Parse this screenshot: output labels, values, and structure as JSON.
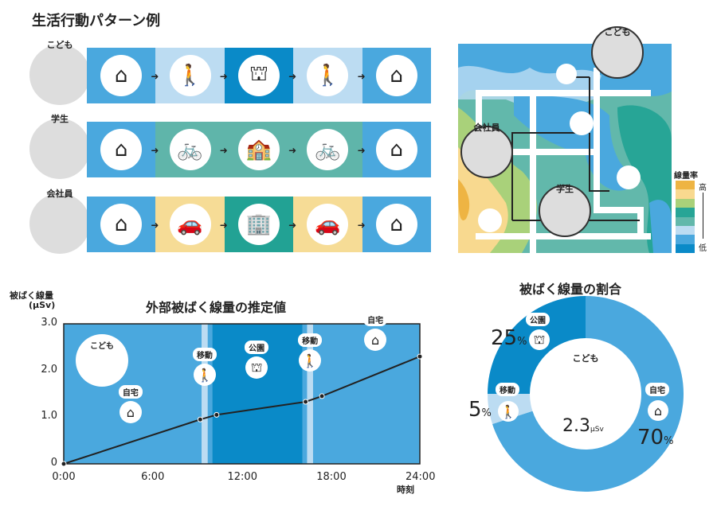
{
  "patterns": {
    "title": "生活行動パターン例",
    "rows": [
      {
        "person": "こども",
        "segments": [
          {
            "icon": "house-icon",
            "color": "#4aa8de"
          },
          {
            "icon": "walk-icon",
            "color": "#bcdcf2"
          },
          {
            "icon": "playground-icon",
            "color": "#0a8ac8"
          },
          {
            "icon": "walk-icon",
            "color": "#bcdcf2"
          },
          {
            "icon": "house-icon",
            "color": "#4aa8de"
          }
        ]
      },
      {
        "person": "学生",
        "segments": [
          {
            "icon": "house-icon",
            "color": "#4aa8de"
          },
          {
            "icon": "bicycle-icon",
            "color": "#5fb5aa"
          },
          {
            "icon": "school-icon",
            "color": "#5fb5aa"
          },
          {
            "icon": "bicycle-icon",
            "color": "#5fb5aa"
          },
          {
            "icon": "house-icon",
            "color": "#4aa8de"
          }
        ]
      },
      {
        "person": "会社員",
        "segments": [
          {
            "icon": "house-icon",
            "color": "#4aa8de"
          },
          {
            "icon": "car-icon",
            "color": "#f6dc96"
          },
          {
            "icon": "office-icon",
            "color": "#22a294"
          },
          {
            "icon": "car-icon",
            "color": "#f6dc96"
          },
          {
            "icon": "house-icon",
            "color": "#4aa8de"
          }
        ]
      }
    ]
  },
  "map": {
    "people": [
      "こども",
      "会社員",
      "学生"
    ],
    "legend": {
      "title": "線量率",
      "high": "高",
      "low": "低",
      "colors": [
        "#eeb443",
        "#f8d98f",
        "#a9d17a",
        "#27a596",
        "#62b8ab",
        "#bcdcf2",
        "#4aa8de",
        "#0a8ac8"
      ]
    }
  },
  "chart_data": {
    "type": "line",
    "title": "外部被ばく線量の推定値",
    "ylabel": "被ばく線量",
    "yunit": "(μSv)",
    "xlabel": "時刻",
    "person": "こども",
    "xlim": [
      0,
      24
    ],
    "ylim": [
      0,
      3
    ],
    "xticks": [
      "0:00",
      "6:00",
      "12:00",
      "18:00",
      "24:00"
    ],
    "yticks": [
      "0",
      "1.0",
      "2.0",
      "3.0"
    ],
    "x": [
      0,
      9.2,
      10.3,
      16.3,
      17.4,
      24
    ],
    "y": [
      0,
      0.95,
      1.05,
      1.33,
      1.45,
      2.3
    ],
    "bands": [
      {
        "from": 0,
        "to": 9.3,
        "label": "自宅",
        "color": "#4aa8de"
      },
      {
        "from": 9.3,
        "to": 9.7,
        "label": "移動",
        "color": "#bcdcf2"
      },
      {
        "from": 10,
        "to": 16.1,
        "label": "公園",
        "color": "#0a8ac8"
      },
      {
        "from": 16.4,
        "to": 16.8,
        "label": "移動",
        "color": "#bcdcf2"
      },
      {
        "from": 16.8,
        "to": 24,
        "label": "自宅",
        "color": "#4aa8de"
      }
    ],
    "annotations": [
      {
        "label": "自宅",
        "x": 4.5,
        "y": 0.75,
        "icon": "house-icon"
      },
      {
        "label": "移動",
        "x": 9.5,
        "y": 1.55,
        "icon": "walk-icon"
      },
      {
        "label": "公園",
        "x": 13,
        "y": 1.7,
        "icon": "playground-icon"
      },
      {
        "label": "移動",
        "x": 16.6,
        "y": 1.85,
        "icon": "walk-icon"
      },
      {
        "label": "自宅",
        "x": 21,
        "y": 2.3,
        "icon": "house-icon"
      }
    ]
  },
  "donut": {
    "title": "被ばく線量の割合",
    "person": "こども",
    "total": "2.3",
    "unit": "μSv",
    "slices": [
      {
        "label": "自宅",
        "value": 70,
        "pct": "70",
        "color": "#4aa8de"
      },
      {
        "label": "移動",
        "value": 5,
        "pct": "5",
        "color": "#bcdcf2"
      },
      {
        "label": "公園",
        "value": 25,
        "pct": "25",
        "color": "#0a8ac8"
      }
    ],
    "pct_sign": "%"
  }
}
